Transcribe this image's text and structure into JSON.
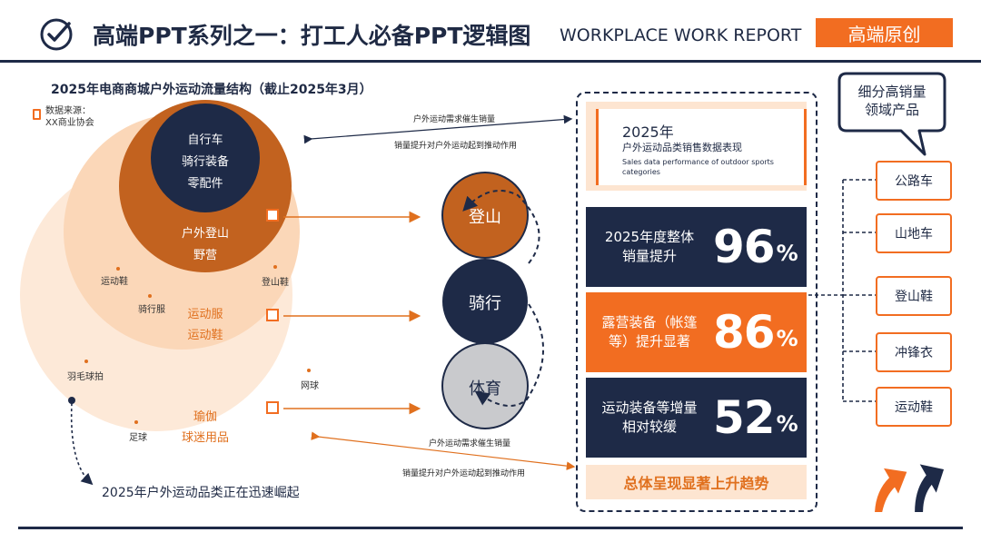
{
  "header": {
    "title": "高端PPT系列之一：打工人必备PPT逻辑图",
    "subtitle": "WORKPLACE WORK REPORT",
    "badge": "高端原创"
  },
  "diagram": {
    "title": "2025年电商商城户外运动流量结构（截止2025年3月）",
    "source_line1": "数据来源：",
    "source_line2": "XX商业协会",
    "inner_circle": [
      "自行车",
      "骑行装备",
      "零配件"
    ],
    "middle_circle": [
      "户外登山",
      "野营"
    ],
    "outer_circle": [
      "运动服",
      "运动鞋"
    ],
    "outermost_circle": [
      "瑜伽",
      "球迷用品"
    ],
    "small_labels": {
      "shoes": "运动鞋",
      "hiking_shoes": "登山鞋",
      "riding_clothes": "骑行服",
      "badminton": "羽毛球拍",
      "tennis": "网球",
      "football": "足球"
    },
    "arrow_top_upper": "户外运动需求催生销量",
    "arrow_top_lower": "销量提升对户外运动起到推动作用",
    "arrow_bottom_upper": "户外运动需求催生销量",
    "arrow_bottom_lower": "销量提升对户外运动起到推动作用",
    "bubbles": [
      "登山",
      "骑行",
      "体育"
    ],
    "footnote": "2025年户外运动品类正在迅速崛起"
  },
  "panel": {
    "year": "2025年",
    "title_cn": "户外运动品类销售数据表现",
    "title_en_1": "Sales data performance of outdoor sports",
    "title_en_2": "categories",
    "stats": [
      {
        "line1": "2025年度整体",
        "line2": "销量提升",
        "value": "96",
        "unit": "%"
      },
      {
        "line1": "露营装备（帐篷",
        "line2": "等）提升显著",
        "value": "86",
        "unit": "%"
      },
      {
        "line1": "运动装备等增量",
        "line2": "相对较缓",
        "value": "52",
        "unit": "%"
      }
    ],
    "summary": "总体呈现显著上升趋势"
  },
  "callout": {
    "line1": "细分高销量",
    "line2": "领域产品"
  },
  "categories": [
    "公路车",
    "山地车",
    "登山鞋",
    "冲锋衣",
    "运动鞋"
  ],
  "colors": {
    "navy": "#1e2a47",
    "orange": "#f26d21",
    "rust": "#c2621f",
    "peach": "#fde5d1",
    "gray": "#c9cacd"
  }
}
